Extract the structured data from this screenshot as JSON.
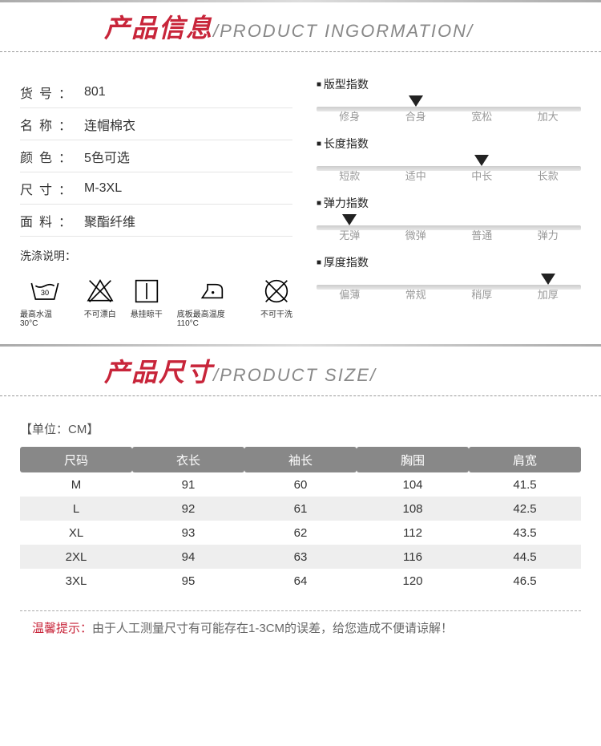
{
  "section1": {
    "zh": "产品信息",
    "en": "/PRODUCT INGORMATION/"
  },
  "section2": {
    "zh": "产品尺寸",
    "en": "/PRODUCT SIZE/"
  },
  "specs": [
    {
      "label": "货号",
      "value": "801"
    },
    {
      "label": "名称",
      "value": "连帽棉衣"
    },
    {
      "label": "颜色",
      "value": "5色可选"
    },
    {
      "label": "尺寸",
      "value": "M-3XL"
    },
    {
      "label": "面料",
      "value": "聚酯纤维"
    }
  ],
  "wash_label": "洗涤说明：",
  "wash": [
    {
      "caption": "最高水温30°C"
    },
    {
      "caption": "不可漂白"
    },
    {
      "caption": "悬挂晾干"
    },
    {
      "caption": "底板最高温度110°C"
    },
    {
      "caption": "不可干洗"
    }
  ],
  "indicators": [
    {
      "title": "版型指数",
      "labels": [
        "修身",
        "合身",
        "宽松",
        "加大"
      ],
      "position_pct": 37.5
    },
    {
      "title": "长度指数",
      "labels": [
        "短款",
        "适中",
        "中长",
        "长款"
      ],
      "position_pct": 62.5
    },
    {
      "title": "弹力指数",
      "labels": [
        "无弹",
        "微弹",
        "普通",
        "弹力"
      ],
      "position_pct": 12.5
    },
    {
      "title": "厚度指数",
      "labels": [
        "偏薄",
        "常规",
        "稍厚",
        "加厚"
      ],
      "position_pct": 87.5
    }
  ],
  "unit_label": "【单位：CM】",
  "size_table": {
    "columns": [
      "尺码",
      "衣长",
      "袖长",
      "胸围",
      "肩宽"
    ],
    "rows": [
      [
        "M",
        "91",
        "60",
        "104",
        "41.5"
      ],
      [
        "L",
        "92",
        "61",
        "108",
        "42.5"
      ],
      [
        "XL",
        "93",
        "62",
        "112",
        "43.5"
      ],
      [
        "2XL",
        "94",
        "63",
        "116",
        "44.5"
      ],
      [
        "3XL",
        "95",
        "64",
        "120",
        "46.5"
      ]
    ]
  },
  "tip_label": "温馨提示：",
  "tip_text": "由于人工测量尺寸有可能存在1-3CM的误差，给您造成不便请谅解！",
  "colors": {
    "accent": "#c8253a",
    "header_bg": "#888888",
    "row_alt": "#eeeeee"
  }
}
